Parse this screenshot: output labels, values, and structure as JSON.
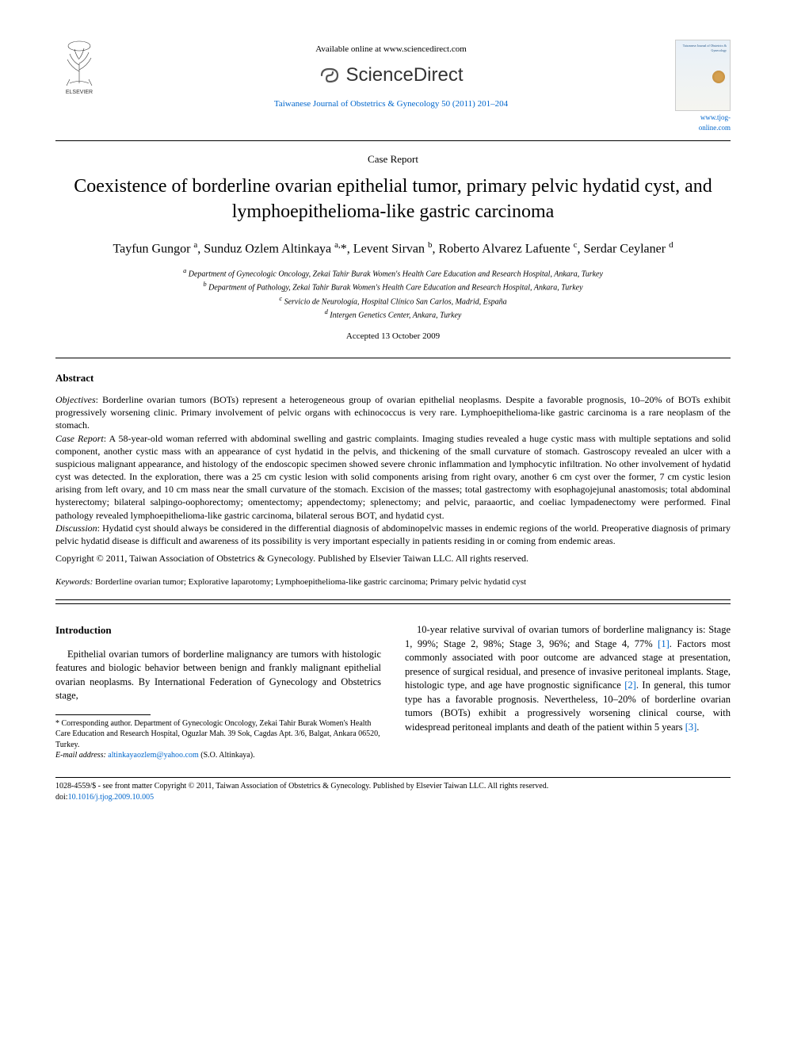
{
  "header": {
    "available_text": "Available online at www.sciencedirect.com",
    "sciencedirect_label": "ScienceDirect",
    "journal_citation": "Taiwanese Journal of Obstetrics & Gynecology 50 (2011) 201–204",
    "journal_link": "www.tjog-online.com",
    "cover_title": "Taiwanese Journal of Obstetrics & Gynecology",
    "elsevier_alt": "ELSEVIER"
  },
  "article": {
    "type": "Case Report",
    "title": "Coexistence of borderline ovarian epithelial tumor, primary pelvic hydatid cyst, and lymphoepithelioma-like gastric carcinoma",
    "authors_html": "Tayfun Gungor <sup>a</sup>, Sunduz Ozlem Altinkaya <sup>a,</sup>*, Levent Sirvan <sup>b</sup>, Roberto Alvarez Lafuente <sup>c</sup>, Serdar Ceylaner <sup>d</sup>",
    "affiliations": {
      "a": "Department of Gynecologic Oncology, Zekai Tahir Burak Women's Health Care Education and Research Hospital, Ankara, Turkey",
      "b": "Department of Pathology, Zekai Tahir Burak Women's Health Care Education and Research Hospital, Ankara, Turkey",
      "c": "Servicio de Neurología, Hospital Clínico San Carlos, Madrid, España",
      "d": "Intergen Genetics Center, Ankara, Turkey"
    },
    "accepted": "Accepted 13 October 2009"
  },
  "abstract": {
    "heading": "Abstract",
    "objectives_label": "Objectives",
    "objectives": ": Borderline ovarian tumors (BOTs) represent a heterogeneous group of ovarian epithelial neoplasms. Despite a favorable prognosis, 10–20% of BOTs exhibit progressively worsening clinic. Primary involvement of pelvic organs with echinococcus is very rare. Lymphoepithelioma-like gastric carcinoma is a rare neoplasm of the stomach.",
    "case_label": "Case Report",
    "case": ": A 58-year-old woman referred with abdominal swelling and gastric complaints. Imaging studies revealed a huge cystic mass with multiple septations and solid component, another cystic mass with an appearance of cyst hydatid in the pelvis, and thickening of the small curvature of stomach. Gastroscopy revealed an ulcer with a suspicious malignant appearance, and histology of the endoscopic specimen showed severe chronic inflammation and lymphocytic infiltration. No other involvement of hydatid cyst was detected. In the exploration, there was a 25 cm cystic lesion with solid components arising from right ovary, another 6 cm cyst over the former, 7 cm cystic lesion arising from left ovary, and 10 cm mass near the small curvature of the stomach. Excision of the masses; total gastrectomy with esophagojejunal anastomosis; total abdominal hysterectomy; bilateral salpingo-oophorectomy; omentectomy; appendectomy; splenectomy; and pelvic, paraaortic, and coeliac lympadenectomy were performed. Final pathology revealed lymphoepithelioma-like gastric carcinoma, bilateral serous BOT, and hydatid cyst.",
    "discussion_label": "Discussion",
    "discussion": ": Hydatid cyst should always be considered in the differential diagnosis of abdominopelvic masses in endemic regions of the world. Preoperative diagnosis of primary pelvic hydatid disease is difficult and awareness of its possibility is very important especially in patients residing in or coming from endemic areas.",
    "copyright": "Copyright © 2011, Taiwan Association of Obstetrics & Gynecology. Published by Elsevier Taiwan LLC. All rights reserved."
  },
  "keywords": {
    "label": "Keywords:",
    "text": " Borderline ovarian tumor; Explorative laparotomy; Lymphoepithelioma-like gastric carcinoma; Primary pelvic hydatid cyst"
  },
  "body": {
    "intro_heading": "Introduction",
    "col1_para": "Epithelial ovarian tumors of borderline malignancy are tumors with histologic features and biologic behavior between benign and frankly malignant epithelial ovarian neoplasms. By International Federation of Gynecology and Obstetrics stage,",
    "col2_para": "10-year relative survival of ovarian tumors of borderline malignancy is: Stage 1, 99%; Stage 2, 98%; Stage 3, 96%; and Stage 4, 77% [1]. Factors most commonly associated with poor outcome are advanced stage at presentation, presence of surgical residual, and presence of invasive peritoneal implants. Stage, histologic type, and age have prognostic significance [2]. In general, this tumor type has a favorable prognosis. Nevertheless, 10–20% of borderline ovarian tumors (BOTs) exhibit a progressively worsening clinical course, with widespread peritoneal implants and death of the patient within 5 years [3].",
    "refs": {
      "r1": "[1]",
      "r2": "[2]",
      "r3": "[3]"
    }
  },
  "footnotes": {
    "corresponding": "* Corresponding author. Department of Gynecologic Oncology, Zekai Tahir Burak Women's Health Care Education and Research Hospital, Oguzlar Mah. 39 Sok, Cagdas Apt. 3/6, Balgat, Ankara 06520, Turkey.",
    "email_label": "E-mail address:",
    "email": "altinkayaozlem@yahoo.com",
    "email_suffix": " (S.O. Altinkaya)."
  },
  "bottom": {
    "issn_line": "1028-4559/$ - see front matter Copyright © 2011, Taiwan Association of Obstetrics & Gynecology. Published by Elsevier Taiwan LLC. All rights reserved.",
    "doi_label": "doi:",
    "doi": "10.1016/j.tjog.2009.10.005"
  },
  "colors": {
    "link": "#0066cc",
    "text": "#000000",
    "background": "#ffffff"
  }
}
